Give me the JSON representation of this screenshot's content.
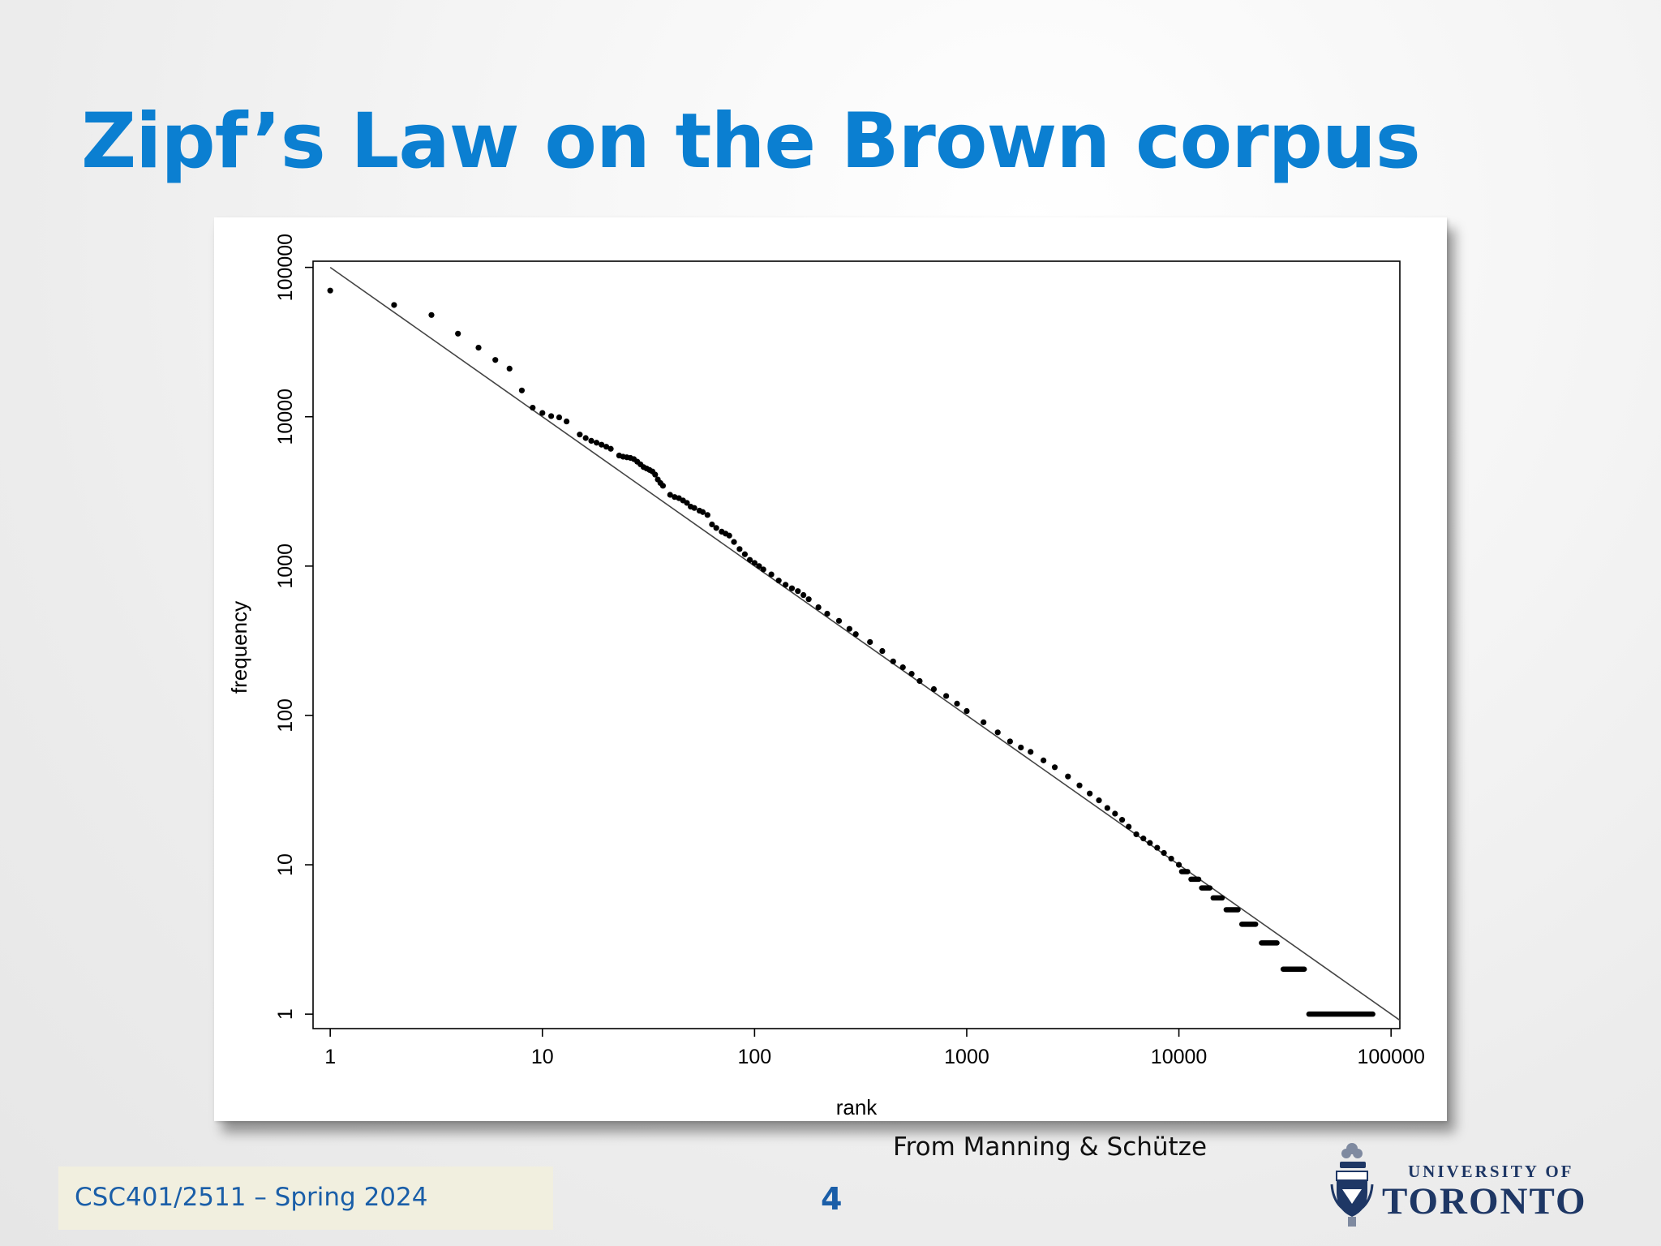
{
  "slide": {
    "title": "Zipf’s Law on the Brown corpus",
    "title_color": "#0b7fd1",
    "source_note": "From Manning & Schütze",
    "footer_course": "CSC401/2511 – Spring 2024",
    "footer_color": "#1a5ea8",
    "page_number": "4",
    "page_number_color": "#1a5ea8",
    "logo": {
      "line1": "UNIVERSITY OF",
      "line2": "TORONTO",
      "color": "#1e3765",
      "icon": "university-crest"
    }
  },
  "chart_data": {
    "type": "scatter",
    "title": "",
    "xlabel": "rank",
    "ylabel": "frequency",
    "x_scale": "log",
    "y_scale": "log",
    "xlim": [
      0.83,
      110000
    ],
    "ylim": [
      0.8,
      110000
    ],
    "x_ticks": [
      {
        "value": 1,
        "label": "1"
      },
      {
        "value": 10,
        "label": "10"
      },
      {
        "value": 100,
        "label": "100"
      },
      {
        "value": 1000,
        "label": "1000"
      },
      {
        "value": 10000,
        "label": "10000"
      },
      {
        "value": 100000,
        "label": "100000"
      }
    ],
    "y_ticks": [
      {
        "value": 1,
        "label": "1"
      },
      {
        "value": 10,
        "label": "10"
      },
      {
        "value": 100,
        "label": "100"
      },
      {
        "value": 1000,
        "label": "1000"
      },
      {
        "value": 10000,
        "label": "10000"
      },
      {
        "value": 100000,
        "label": "100000"
      }
    ],
    "grid": false,
    "point_color": "#000000",
    "line_color": "#444444",
    "series": [
      {
        "kind": "points",
        "points": [
          [
            1,
            69971
          ],
          [
            2,
            56000
          ],
          [
            3,
            48000
          ],
          [
            4,
            36000
          ],
          [
            5,
            29000
          ],
          [
            6,
            24000
          ],
          [
            7,
            21000
          ],
          [
            8,
            15000
          ],
          [
            9,
            11500
          ],
          [
            10,
            10600
          ],
          [
            11,
            10100
          ],
          [
            12,
            9900
          ],
          [
            13,
            9300
          ],
          [
            15,
            7600
          ],
          [
            16,
            7200
          ],
          [
            17,
            6900
          ],
          [
            18,
            6700
          ],
          [
            19,
            6500
          ],
          [
            20,
            6300
          ],
          [
            21,
            6100
          ],
          [
            23,
            5500
          ],
          [
            24,
            5400
          ],
          [
            25,
            5350
          ],
          [
            26,
            5300
          ],
          [
            27,
            5200
          ],
          [
            28,
            5000
          ],
          [
            29,
            4800
          ],
          [
            30,
            4600
          ],
          [
            31,
            4500
          ],
          [
            32,
            4400
          ],
          [
            33,
            4300
          ],
          [
            34,
            4100
          ],
          [
            35,
            3800
          ],
          [
            36,
            3600
          ],
          [
            37,
            3450
          ],
          [
            40,
            3000
          ],
          [
            42,
            2900
          ],
          [
            44,
            2850
          ],
          [
            46,
            2750
          ],
          [
            48,
            2650
          ],
          [
            50,
            2500
          ],
          [
            52,
            2450
          ],
          [
            55,
            2350
          ],
          [
            57,
            2300
          ],
          [
            60,
            2200
          ],
          [
            63,
            1900
          ],
          [
            66,
            1800
          ],
          [
            70,
            1700
          ],
          [
            73,
            1650
          ],
          [
            76,
            1600
          ],
          [
            80,
            1450
          ],
          [
            85,
            1300
          ],
          [
            90,
            1200
          ],
          [
            95,
            1100
          ],
          [
            100,
            1050
          ],
          [
            105,
            1000
          ],
          [
            110,
            950
          ],
          [
            120,
            880
          ],
          [
            130,
            800
          ],
          [
            140,
            750
          ],
          [
            150,
            710
          ],
          [
            160,
            680
          ],
          [
            170,
            640
          ],
          [
            180,
            600
          ],
          [
            200,
            530
          ],
          [
            220,
            480
          ],
          [
            250,
            430
          ],
          [
            280,
            380
          ],
          [
            300,
            350
          ],
          [
            350,
            310
          ],
          [
            400,
            270
          ],
          [
            450,
            230
          ],
          [
            500,
            210
          ],
          [
            550,
            190
          ],
          [
            600,
            170
          ],
          [
            700,
            150
          ],
          [
            800,
            135
          ],
          [
            900,
            120
          ],
          [
            1000,
            107
          ],
          [
            1200,
            90
          ],
          [
            1400,
            77
          ],
          [
            1600,
            67
          ],
          [
            1800,
            61
          ],
          [
            2000,
            57
          ],
          [
            2300,
            50
          ],
          [
            2600,
            45
          ],
          [
            3000,
            39
          ],
          [
            3400,
            34
          ],
          [
            3800,
            30
          ],
          [
            4200,
            27
          ],
          [
            4600,
            24
          ],
          [
            5000,
            22
          ],
          [
            5400,
            20
          ],
          [
            5800,
            18
          ],
          [
            6300,
            16
          ],
          [
            6800,
            15
          ],
          [
            7300,
            14
          ],
          [
            7900,
            13
          ],
          [
            8500,
            12
          ],
          [
            9200,
            11
          ],
          [
            10000,
            10
          ]
        ]
      },
      {
        "kind": "steps",
        "steps": [
          {
            "y": 9,
            "x_from": 10300,
            "x_to": 11000
          },
          {
            "y": 8,
            "x_from": 11400,
            "x_to": 12400
          },
          {
            "y": 7,
            "x_from": 12800,
            "x_to": 14000
          },
          {
            "y": 6,
            "x_from": 14500,
            "x_to": 16000
          },
          {
            "y": 5,
            "x_from": 16700,
            "x_to": 19000
          },
          {
            "y": 4,
            "x_from": 19800,
            "x_to": 23000
          },
          {
            "y": 3,
            "x_from": 24500,
            "x_to": 29000
          },
          {
            "y": 2,
            "x_from": 31000,
            "x_to": 39000
          },
          {
            "y": 1,
            "x_from": 41000,
            "x_to": 82000
          }
        ]
      },
      {
        "kind": "line",
        "points": [
          [
            1,
            100000
          ],
          [
            110000,
            0.91
          ]
        ]
      }
    ]
  }
}
